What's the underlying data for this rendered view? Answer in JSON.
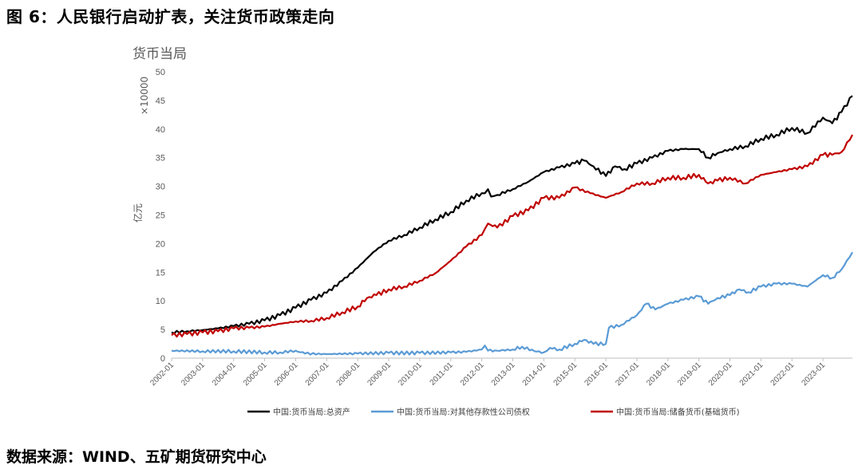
{
  "figure_title": "图 6：人民银行启动扩表，关注货币政策走向",
  "source": "数据来源：WIND、五矿期货研究中心",
  "chart_data": {
    "type": "line",
    "title": "货币当局",
    "ylabel": "亿元",
    "y_multiplier": "×10000",
    "ylim": [
      0,
      50
    ],
    "yticks": [
      0,
      5,
      10,
      15,
      20,
      25,
      30,
      35,
      40,
      45,
      50
    ],
    "xlim": [
      2002.0,
      2023.95
    ],
    "xticks": [
      "2002-01",
      "2003-01",
      "2004-01",
      "2005-01",
      "2006-01",
      "2007-01",
      "2008-01",
      "2009-01",
      "2010-01",
      "2011-01",
      "2012-01",
      "2013-01",
      "2014-01",
      "2015-01",
      "2016-01",
      "2017-01",
      "2018-01",
      "2019-01",
      "2020-01",
      "2021-01",
      "2022-01",
      "2023-01"
    ],
    "legend_position": "bottom",
    "grid": false,
    "series": [
      {
        "name": "中国:货币当局:总资产",
        "color": "#000000",
        "points": [
          [
            2002.0,
            4.5
          ],
          [
            2002.5,
            4.7
          ],
          [
            2003.0,
            4.9
          ],
          [
            2003.5,
            5.2
          ],
          [
            2004.0,
            5.6
          ],
          [
            2004.5,
            6.0
          ],
          [
            2005.0,
            6.6
          ],
          [
            2005.5,
            7.5
          ],
          [
            2006.0,
            8.8
          ],
          [
            2006.5,
            10.2
          ],
          [
            2007.0,
            11.4
          ],
          [
            2007.5,
            13.5
          ],
          [
            2008.0,
            15.8
          ],
          [
            2008.5,
            18.5
          ],
          [
            2009.0,
            20.5
          ],
          [
            2009.5,
            21.5
          ],
          [
            2010.0,
            22.8
          ],
          [
            2010.5,
            24.2
          ],
          [
            2011.0,
            25.5
          ],
          [
            2011.5,
            27.5
          ],
          [
            2012.0,
            28.8
          ],
          [
            2012.2,
            29.5
          ],
          [
            2012.3,
            28.2
          ],
          [
            2012.5,
            28.5
          ],
          [
            2013.0,
            29.5
          ],
          [
            2013.5,
            30.8
          ],
          [
            2014.0,
            32.5
          ],
          [
            2014.5,
            33.3
          ],
          [
            2015.0,
            34.0
          ],
          [
            2015.3,
            34.5
          ],
          [
            2015.6,
            33.5
          ],
          [
            2016.0,
            31.8
          ],
          [
            2016.3,
            33.5
          ],
          [
            2016.6,
            33.0
          ],
          [
            2017.0,
            34.0
          ],
          [
            2017.5,
            35.0
          ],
          [
            2018.0,
            36.2
          ],
          [
            2018.5,
            36.5
          ],
          [
            2019.0,
            36.5
          ],
          [
            2019.3,
            35.0
          ],
          [
            2019.6,
            35.8
          ],
          [
            2020.0,
            36.5
          ],
          [
            2020.5,
            37.0
          ],
          [
            2021.0,
            38.3
          ],
          [
            2021.5,
            39.0
          ],
          [
            2022.0,
            40.2
          ],
          [
            2022.5,
            39.3
          ],
          [
            2023.0,
            42.0
          ],
          [
            2023.3,
            41.0
          ],
          [
            2023.6,
            43.0
          ],
          [
            2023.95,
            45.8
          ]
        ]
      },
      {
        "name": "中国:货币当局:对其他存款性公司债权",
        "color": "#5b9bd5",
        "points": [
          [
            2002.0,
            1.3
          ],
          [
            2003.0,
            1.2
          ],
          [
            2004.0,
            1.2
          ],
          [
            2005.0,
            1.0
          ],
          [
            2005.5,
            1.0
          ],
          [
            2006.0,
            1.3
          ],
          [
            2006.3,
            0.8
          ],
          [
            2007.0,
            0.7
          ],
          [
            2008.0,
            0.8
          ],
          [
            2009.0,
            0.9
          ],
          [
            2010.0,
            0.9
          ],
          [
            2011.0,
            1.0
          ],
          [
            2011.5,
            1.1
          ],
          [
            2012.0,
            1.5
          ],
          [
            2012.1,
            2.2
          ],
          [
            2012.2,
            1.3
          ],
          [
            2012.5,
            1.3
          ],
          [
            2013.0,
            1.5
          ],
          [
            2013.3,
            2.0
          ],
          [
            2013.7,
            1.2
          ],
          [
            2014.0,
            1.0
          ],
          [
            2014.2,
            1.8
          ],
          [
            2014.5,
            1.5
          ],
          [
            2015.0,
            2.5
          ],
          [
            2015.3,
            3.2
          ],
          [
            2015.6,
            2.5
          ],
          [
            2016.0,
            2.5
          ],
          [
            2016.1,
            5.3
          ],
          [
            2016.5,
            5.8
          ],
          [
            2017.0,
            7.5
          ],
          [
            2017.3,
            9.5
          ],
          [
            2017.6,
            8.5
          ],
          [
            2018.0,
            9.5
          ],
          [
            2018.5,
            10.2
          ],
          [
            2019.0,
            10.8
          ],
          [
            2019.3,
            9.5
          ],
          [
            2019.6,
            10.5
          ],
          [
            2020.0,
            11.0
          ],
          [
            2020.3,
            12.0
          ],
          [
            2020.6,
            11.5
          ],
          [
            2021.0,
            12.5
          ],
          [
            2021.5,
            13.0
          ],
          [
            2022.0,
            13.0
          ],
          [
            2022.5,
            12.5
          ],
          [
            2023.0,
            14.5
          ],
          [
            2023.3,
            14.0
          ],
          [
            2023.6,
            15.5
          ],
          [
            2023.95,
            18.5
          ]
        ]
      },
      {
        "name": "中国:货币当局:储备货币(基础货币)",
        "color": "#c00000",
        "points": [
          [
            2002.0,
            4.0
          ],
          [
            2002.5,
            4.2
          ],
          [
            2003.0,
            4.5
          ],
          [
            2003.5,
            4.7
          ],
          [
            2004.0,
            5.2
          ],
          [
            2004.5,
            5.3
          ],
          [
            2005.0,
            5.5
          ],
          [
            2005.5,
            6.0
          ],
          [
            2006.0,
            6.4
          ],
          [
            2006.5,
            6.5
          ],
          [
            2007.0,
            7.0
          ],
          [
            2007.5,
            8.0
          ],
          [
            2008.0,
            9.0
          ],
          [
            2008.3,
            10.5
          ],
          [
            2008.6,
            11.0
          ],
          [
            2009.0,
            12.0
          ],
          [
            2009.5,
            12.5
          ],
          [
            2010.0,
            13.5
          ],
          [
            2010.5,
            14.8
          ],
          [
            2011.0,
            17.0
          ],
          [
            2011.5,
            19.5
          ],
          [
            2012.0,
            21.5
          ],
          [
            2012.2,
            23.5
          ],
          [
            2012.5,
            22.8
          ],
          [
            2013.0,
            24.8
          ],
          [
            2013.5,
            25.8
          ],
          [
            2014.0,
            28.0
          ],
          [
            2014.5,
            28.0
          ],
          [
            2015.0,
            29.8
          ],
          [
            2015.5,
            28.8
          ],
          [
            2016.0,
            28.0
          ],
          [
            2016.5,
            29.0
          ],
          [
            2017.0,
            30.5
          ],
          [
            2017.5,
            30.5
          ],
          [
            2018.0,
            31.5
          ],
          [
            2018.5,
            31.5
          ],
          [
            2019.0,
            32.0
          ],
          [
            2019.3,
            30.5
          ],
          [
            2019.6,
            31.0
          ],
          [
            2020.0,
            31.5
          ],
          [
            2020.5,
            30.5
          ],
          [
            2021.0,
            32.0
          ],
          [
            2021.5,
            32.5
          ],
          [
            2022.0,
            33.0
          ],
          [
            2022.5,
            33.5
          ],
          [
            2023.0,
            35.5
          ],
          [
            2023.3,
            35.5
          ],
          [
            2023.6,
            36.0
          ],
          [
            2023.95,
            39.0
          ]
        ]
      }
    ]
  }
}
